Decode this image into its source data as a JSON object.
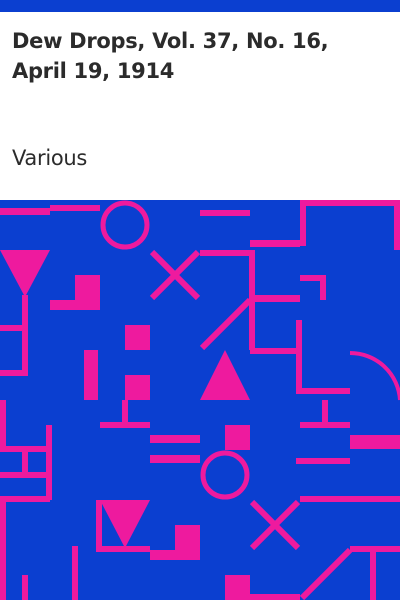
{
  "book": {
    "title": "Dew Drops, Vol. 37, No. 16, April 19, 1914",
    "author": "Various"
  },
  "colors": {
    "accent_bar": "#0b3fd0",
    "art_background": "#0b3fd0",
    "art_foreground": "#ee1a9e"
  }
}
